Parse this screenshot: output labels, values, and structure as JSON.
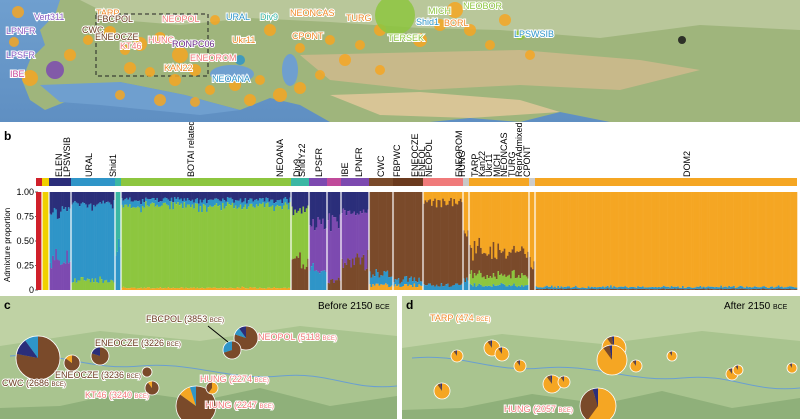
{
  "panel_letters": {
    "b": "b",
    "c": "c",
    "d": "d"
  },
  "panel_a": {
    "labels": [
      {
        "text": "Vert311",
        "color": "#8a5cc2"
      },
      {
        "text": "TARP",
        "color": "#f08a2a"
      },
      {
        "text": "LPNFR",
        "color": "#8a5cc2"
      },
      {
        "text": "CWC",
        "color": "#6b3a1e"
      },
      {
        "text": "FBCPOL",
        "color": "#6b3a1e"
      },
      {
        "text": "NEOPOL",
        "color": "#f07a7a"
      },
      {
        "text": "ENEOCZE",
        "color": "#6b3a1e"
      },
      {
        "text": "HUNG",
        "color": "#f07a7a"
      },
      {
        "text": "KT46",
        "color": "#f07a7a"
      },
      {
        "text": "RONPC06",
        "color": "#6b2a8a"
      },
      {
        "text": "LPSFR",
        "color": "#8a5cc2"
      },
      {
        "text": "IBE",
        "color": "#c94a9a"
      },
      {
        "text": "KAN22",
        "color": "#f08a2a"
      },
      {
        "text": "ENEOROM",
        "color": "#f07a7a"
      },
      {
        "text": "URAL",
        "color": "#2f95c8"
      },
      {
        "text": "Div9",
        "color": "#3bb7a4"
      },
      {
        "text": "Ukr11",
        "color": "#f08a2a"
      },
      {
        "text": "NEONCAS",
        "color": "#f08a2a"
      },
      {
        "text": "CPONT",
        "color": "#f08a2a"
      },
      {
        "text": "TURG",
        "color": "#f08a2a"
      },
      {
        "text": "NEOANA",
        "color": "#2f95c8"
      },
      {
        "text": "MICH",
        "color": "#8cc63f"
      },
      {
        "text": "Shid1",
        "color": "#2f95c8"
      },
      {
        "text": "BORL",
        "color": "#f08a2a"
      },
      {
        "text": "NEOBOR",
        "color": "#8cc63f"
      },
      {
        "text": "TERSEK",
        "color": "#8cc63f"
      },
      {
        "text": "LPSWSIB",
        "color": "#2f95c8"
      }
    ]
  },
  "panel_b": {
    "ylabel": "Admixture proportion",
    "ticks": [
      "1.00",
      "0.75",
      "0.50",
      "0.25",
      "0"
    ],
    "groups": [
      "ELEN",
      "LPSWSIB",
      "URAL",
      "Shid1",
      "BOTAI related",
      "NEOANA",
      "Div9",
      "ShidYz2",
      "LPSFR",
      "IBE",
      "LPNFR",
      "CWC",
      "FBPWC",
      "ENEOCZE",
      "ENEOL",
      "NEOPOL",
      "HUNG",
      "ENEOROM",
      "TARP",
      "Kan22",
      "Ukr11",
      "MICH",
      "NEONCAS",
      "TURG",
      "ReprAdmixed",
      "CPONT",
      "DOM2"
    ]
  },
  "panel_c": {
    "title": "Before 2150",
    "title_unit": "BCE",
    "labels": [
      {
        "name": "FBCPOL",
        "date": "(3853",
        "unit": "BCE)",
        "color": "#6b3a1e"
      },
      {
        "name": "NEOPOL",
        "date": "(5118",
        "unit": "BCE)",
        "color": "#f07a7a"
      },
      {
        "name": "CWC",
        "date": "(2686",
        "unit": "BCE)",
        "color": "#6b3a1e"
      },
      {
        "name": "ENEOCZE",
        "date": "(3226",
        "unit": "BCE)",
        "color": "#6b3a1e"
      },
      {
        "name": "ENEOCZE",
        "date": "(3236",
        "unit": "BCE)",
        "color": "#6b3a1e"
      },
      {
        "name": "KT46",
        "date": "(3240",
        "unit": "BCE)",
        "color": "#f07a7a"
      },
      {
        "name": "HUNG",
        "date": "(2274",
        "unit": "BCE)",
        "color": "#f07a7a"
      },
      {
        "name": "HUNG",
        "date": "(2247",
        "unit": "BCE)",
        "color": "#f07a7a"
      }
    ]
  },
  "panel_d": {
    "title": "After 2150",
    "title_unit": "BCE",
    "labels": [
      {
        "name": "TARP",
        "date": "(474",
        "unit": "BCE)",
        "color": "#f08a2a"
      },
      {
        "name": "HUNG",
        "date": "(2057",
        "unit": "BCE)",
        "color": "#f07a7a"
      }
    ]
  },
  "colors": {
    "orange": "#f5a623",
    "brown": "#7a4a2a",
    "green": "#8dc63f",
    "blue": "#2f95c8",
    "navy": "#2b2e7a",
    "purple": "#7d4ab0",
    "teal": "#3bb7a4",
    "pink": "#f08080"
  }
}
